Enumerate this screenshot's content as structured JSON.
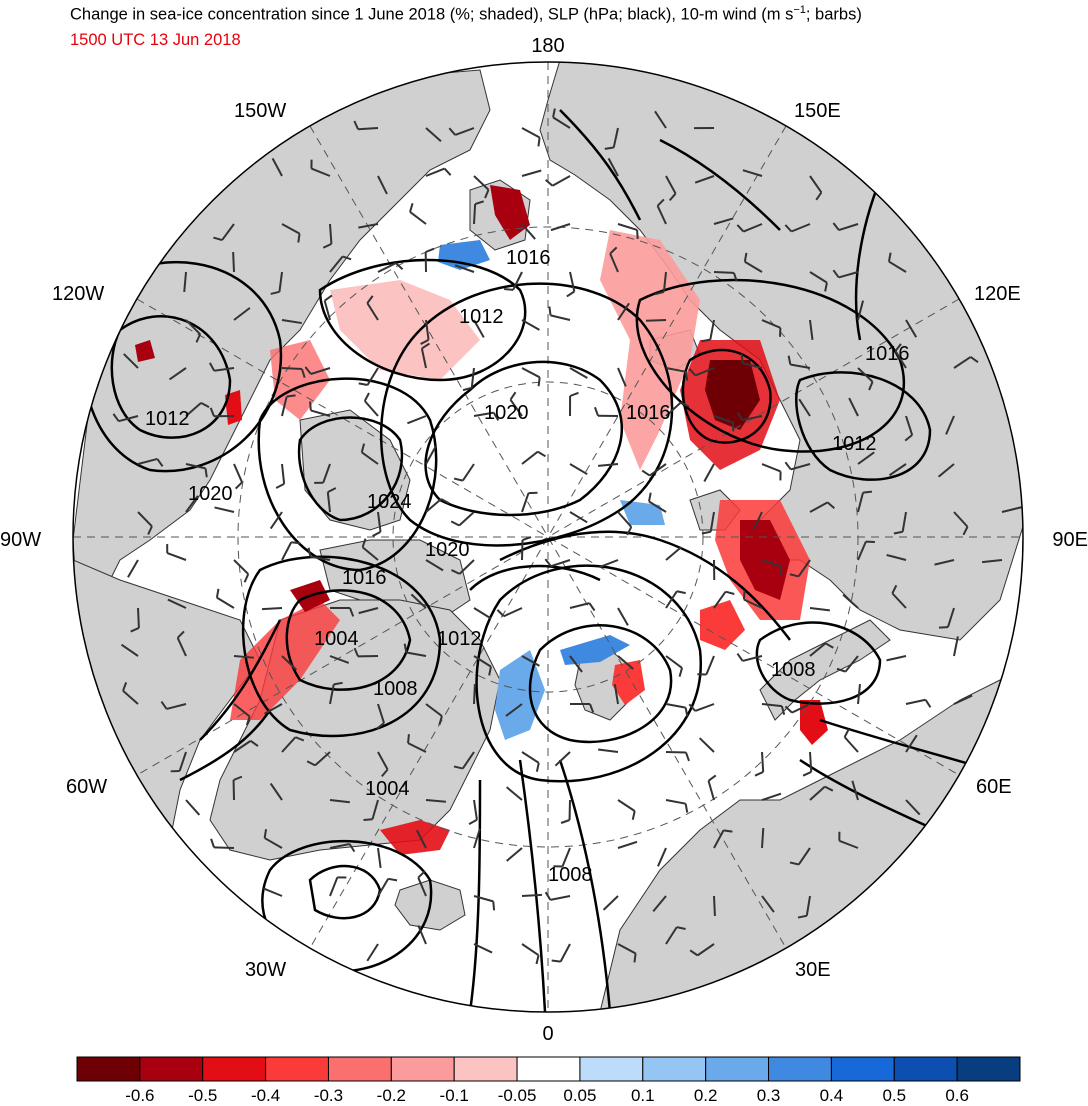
{
  "title_line1": "Change in sea-ice concentration since 1 June 2018 (%; shaded), SLP (hPa; black), 10-m wind (m s",
  "title_sup": "−1",
  "title_line1_end": "; barbs)",
  "valid_time": "1500 UTC 13 Jun 2018",
  "colors": {
    "land": "#d0d0d0",
    "ocean": "#ffffff",
    "contour": "#000000",
    "grid": "#555555",
    "subtitle": "#e8000b"
  },
  "longitude_labels": {
    "top": "180",
    "bottom": "0",
    "left": "90W",
    "right": "90E",
    "w150": "150W",
    "e150": "150E",
    "w120": "120W",
    "e120": "120E",
    "w60": "60W",
    "e60": "60E",
    "w30": "30W",
    "e30": "30E"
  },
  "slp_contour_labels": [
    "1016",
    "1012",
    "1020",
    "1016",
    "1016",
    "1012",
    "1012",
    "1020",
    "1024",
    "1020",
    "1016",
    "1004",
    "1012",
    "1008",
    "1008",
    "1004",
    "1008"
  ],
  "colorbar": {
    "colors": [
      "#6e0005",
      "#a8000e",
      "#e30d15",
      "#fb3a3a",
      "#fb6f6f",
      "#fb9b9b",
      "#fcc3c3",
      "#ffffff",
      "#bcdcfa",
      "#94c5f3",
      "#6aa9ea",
      "#3f8ae0",
      "#1769d9",
      "#0d4fb0",
      "#083d80"
    ],
    "tick_labels": [
      "-0.6",
      "-0.5",
      "-0.4",
      "-0.3",
      "-0.2",
      "-0.1",
      "-0.05",
      "0.05",
      "0.1",
      "0.2",
      "0.3",
      "0.4",
      "0.5",
      "0.6"
    ]
  }
}
